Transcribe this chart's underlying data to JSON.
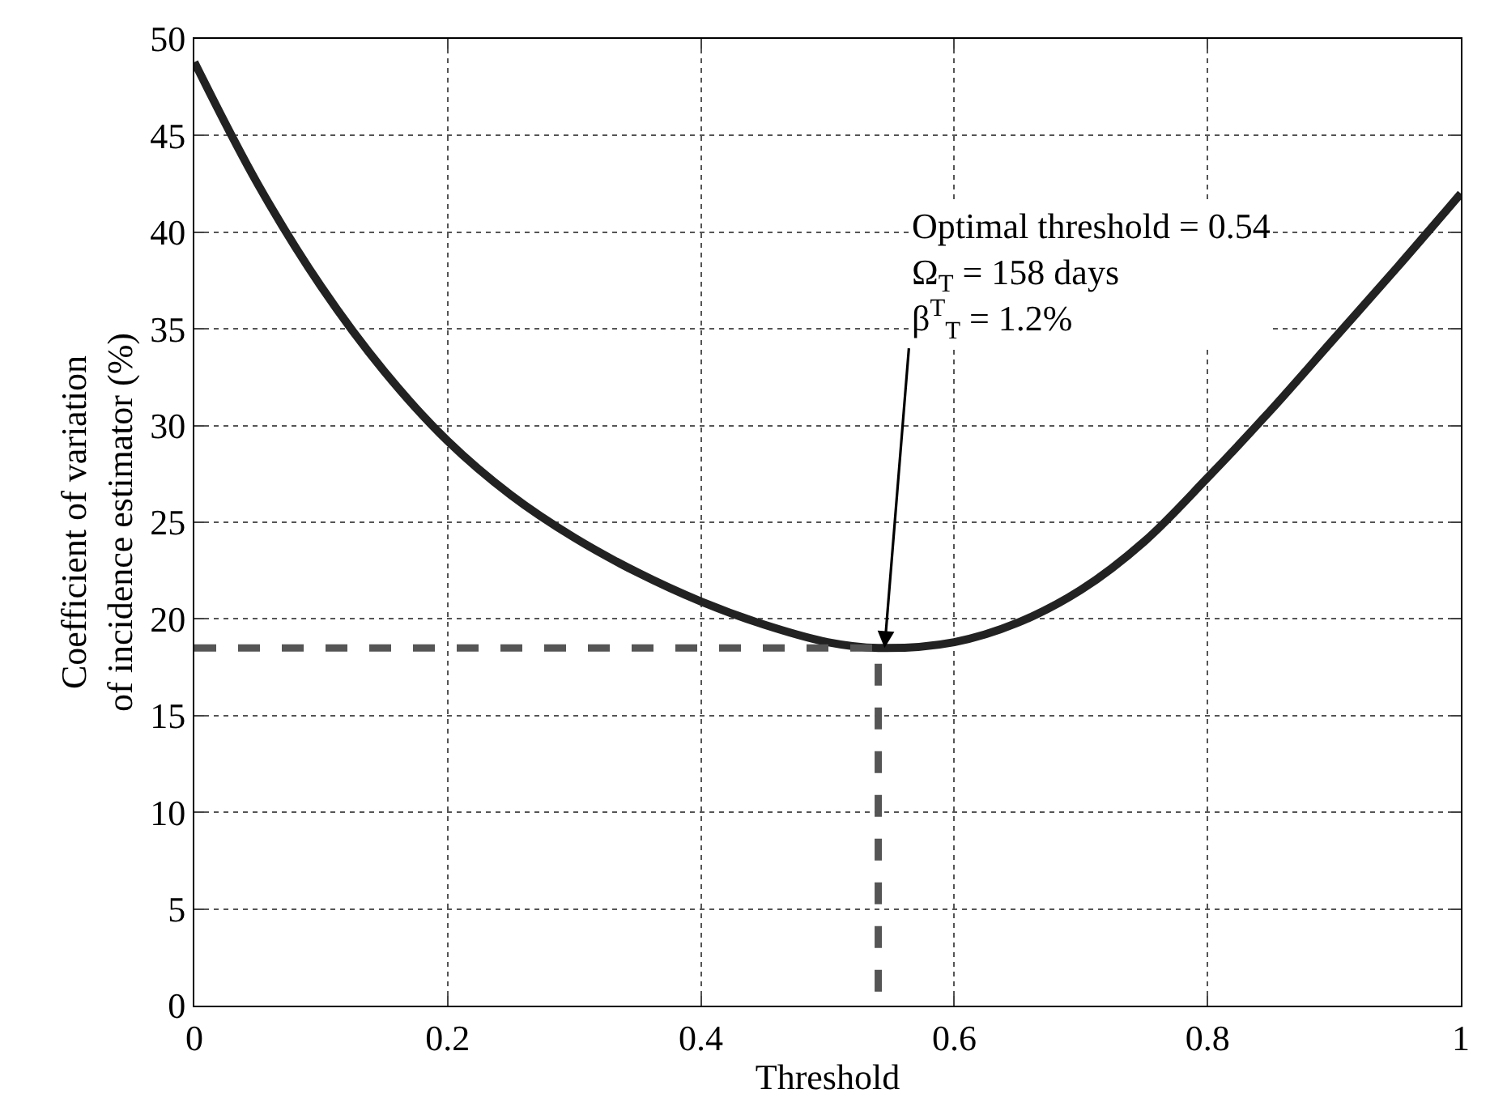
{
  "chart_data": {
    "type": "line",
    "xlabel": "Threshold",
    "ylabel": "Coefficient of variation\nof incidence estimator (%)",
    "xlim": [
      0,
      1
    ],
    "ylim": [
      0,
      50
    ],
    "xticks": [
      0,
      0.2,
      0.4,
      0.6,
      0.8,
      1
    ],
    "yticks": [
      0,
      5,
      10,
      15,
      20,
      25,
      30,
      35,
      40,
      45,
      50
    ],
    "grid": true,
    "series": [
      {
        "color": "#222222",
        "x": [
          0,
          0.05,
          0.1,
          0.15,
          0.2,
          0.25,
          0.3,
          0.35,
          0.4,
          0.45,
          0.5,
          0.54,
          0.6,
          0.65,
          0.7,
          0.75,
          0.8,
          0.85,
          0.9,
          0.95,
          1
        ],
        "values": [
          48.8,
          42.5,
          37.2,
          32.8,
          29.2,
          26.4,
          24.2,
          22.4,
          20.9,
          19.7,
          18.8,
          18.5,
          18.8,
          19.8,
          21.5,
          24.0,
          27.3,
          30.8,
          34.5,
          38.2,
          42.0
        ]
      },
      {
        "color": "#555555",
        "line_style": "dashed",
        "x": [
          0,
          0.54,
          0.54
        ],
        "values": [
          18.5,
          18.5,
          0
        ]
      }
    ],
    "annotations": [
      {
        "text": "Optimal threshold = 0.54\nΩ$_{T}$ = 158 days\nβ$^{T}$$_{T}$ = 1.2%",
        "x": 0.545,
        "y": 18.5
      }
    ]
  }
}
